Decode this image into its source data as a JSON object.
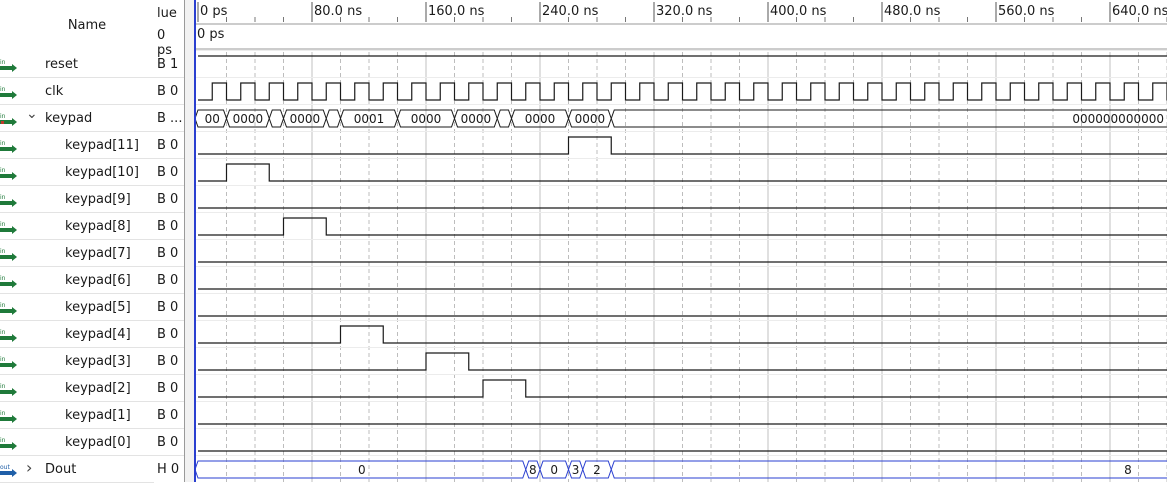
{
  "header": {
    "name_label": "Name",
    "value_label": "lue",
    "value_time": "0 ps",
    "cursor_time": "0 ps"
  },
  "timeline": {
    "ticks": [
      "0 ps",
      "80.0 ns",
      "160.0 ns",
      "240.0 ns",
      "320.0 ns",
      "400.0 ns",
      "480.0 ns",
      "560.0 ns",
      "640.0 ns"
    ]
  },
  "signals": [
    {
      "name": "reset",
      "value": "B 1",
      "icon": "in",
      "sub": false
    },
    {
      "name": "clk",
      "value": "B 0",
      "icon": "in",
      "sub": false
    },
    {
      "name": "keypad",
      "value": "B ...",
      "icon": "in-bus",
      "sub": false,
      "expanded": true
    },
    {
      "name": "keypad[11]",
      "value": "B 0",
      "icon": "in",
      "sub": true
    },
    {
      "name": "keypad[10]",
      "value": "B 0",
      "icon": "in",
      "sub": true
    },
    {
      "name": "keypad[9]",
      "value": "B 0",
      "icon": "in",
      "sub": true
    },
    {
      "name": "keypad[8]",
      "value": "B 0",
      "icon": "in",
      "sub": true
    },
    {
      "name": "keypad[7]",
      "value": "B 0",
      "icon": "in",
      "sub": true
    },
    {
      "name": "keypad[6]",
      "value": "B 0",
      "icon": "in",
      "sub": true
    },
    {
      "name": "keypad[5]",
      "value": "B 0",
      "icon": "in",
      "sub": true
    },
    {
      "name": "keypad[4]",
      "value": "B 0",
      "icon": "in",
      "sub": true
    },
    {
      "name": "keypad[3]",
      "value": "B 0",
      "icon": "in",
      "sub": true
    },
    {
      "name": "keypad[2]",
      "value": "B 0",
      "icon": "in",
      "sub": true
    },
    {
      "name": "keypad[1]",
      "value": "B 0",
      "icon": "in",
      "sub": true
    },
    {
      "name": "keypad[0]",
      "value": "B 0",
      "icon": "in",
      "sub": true
    },
    {
      "name": "Dout",
      "value": "H 0",
      "icon": "out",
      "sub": false,
      "expanded": false
    }
  ],
  "keypad_bus_labels": [
    "00",
    "0000",
    "",
    "0000",
    "",
    "0001",
    "0000",
    "0000",
    "",
    "0000",
    "0000",
    "0000"
  ],
  "keypad_bus_final": "000000000000",
  "dout_labels": [
    "0",
    "8",
    "0",
    "3",
    "2",
    "8"
  ],
  "colors": {
    "wave": "#1a1a1a",
    "cursor": "#2a3fd0",
    "icon_in": "#1f7a3a",
    "icon_out": "#1f5fa8",
    "grid": "#bdbdbd"
  },
  "icons": {
    "expand": "chevron-down-icon",
    "collapse": "chevron-right-icon",
    "input_pin": "input-pin-icon",
    "output_pin": "output-pin-icon"
  }
}
